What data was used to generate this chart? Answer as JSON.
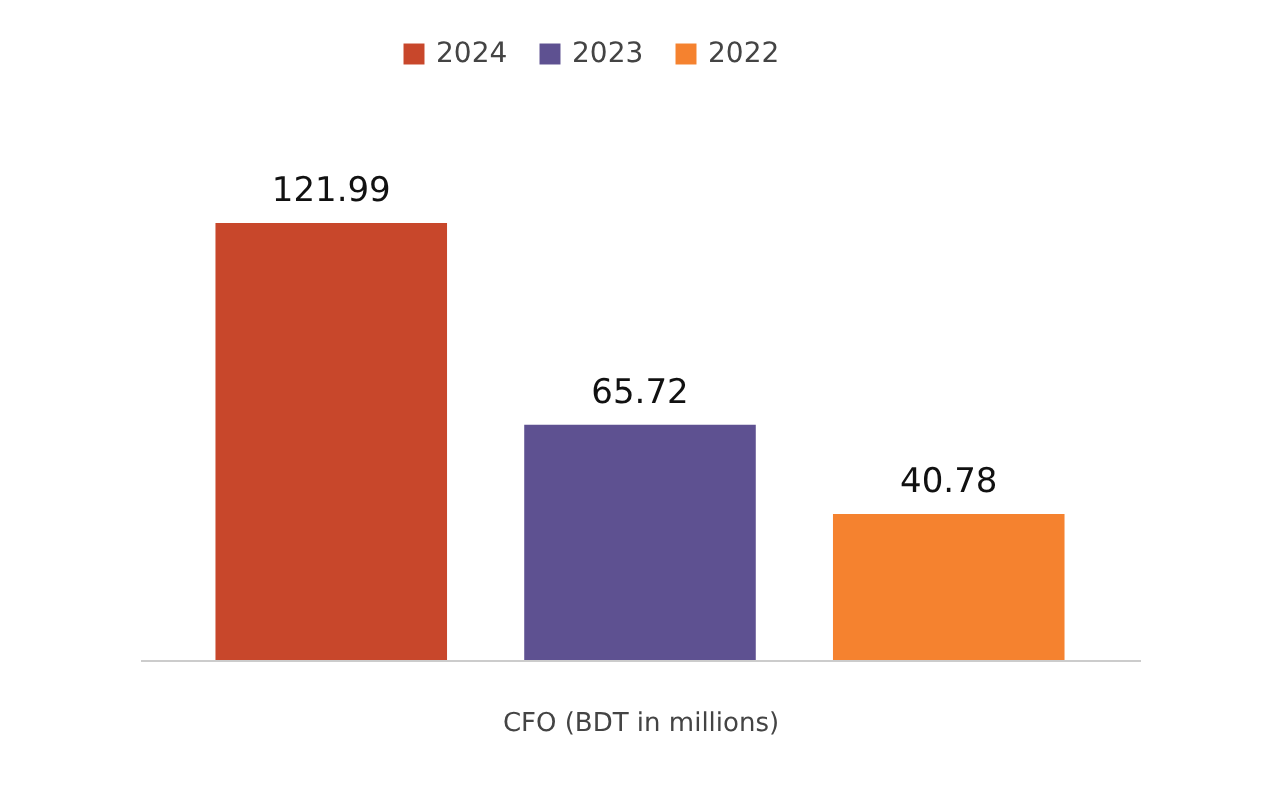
{
  "chart_data": {
    "type": "bar",
    "categories": [
      null
    ],
    "xlabel": "CFO (BDT in millions)",
    "series": [
      {
        "name": "2024",
        "color": "#c8472b",
        "values": [
          121.99
        ]
      },
      {
        "name": "2023",
        "color": "#5e5191",
        "values": [
          65.72
        ]
      },
      {
        "name": "2022",
        "color": "#f5822f",
        "values": [
          40.78
        ]
      }
    ],
    "data_labels": true,
    "legend": "top",
    "grid": false
  }
}
